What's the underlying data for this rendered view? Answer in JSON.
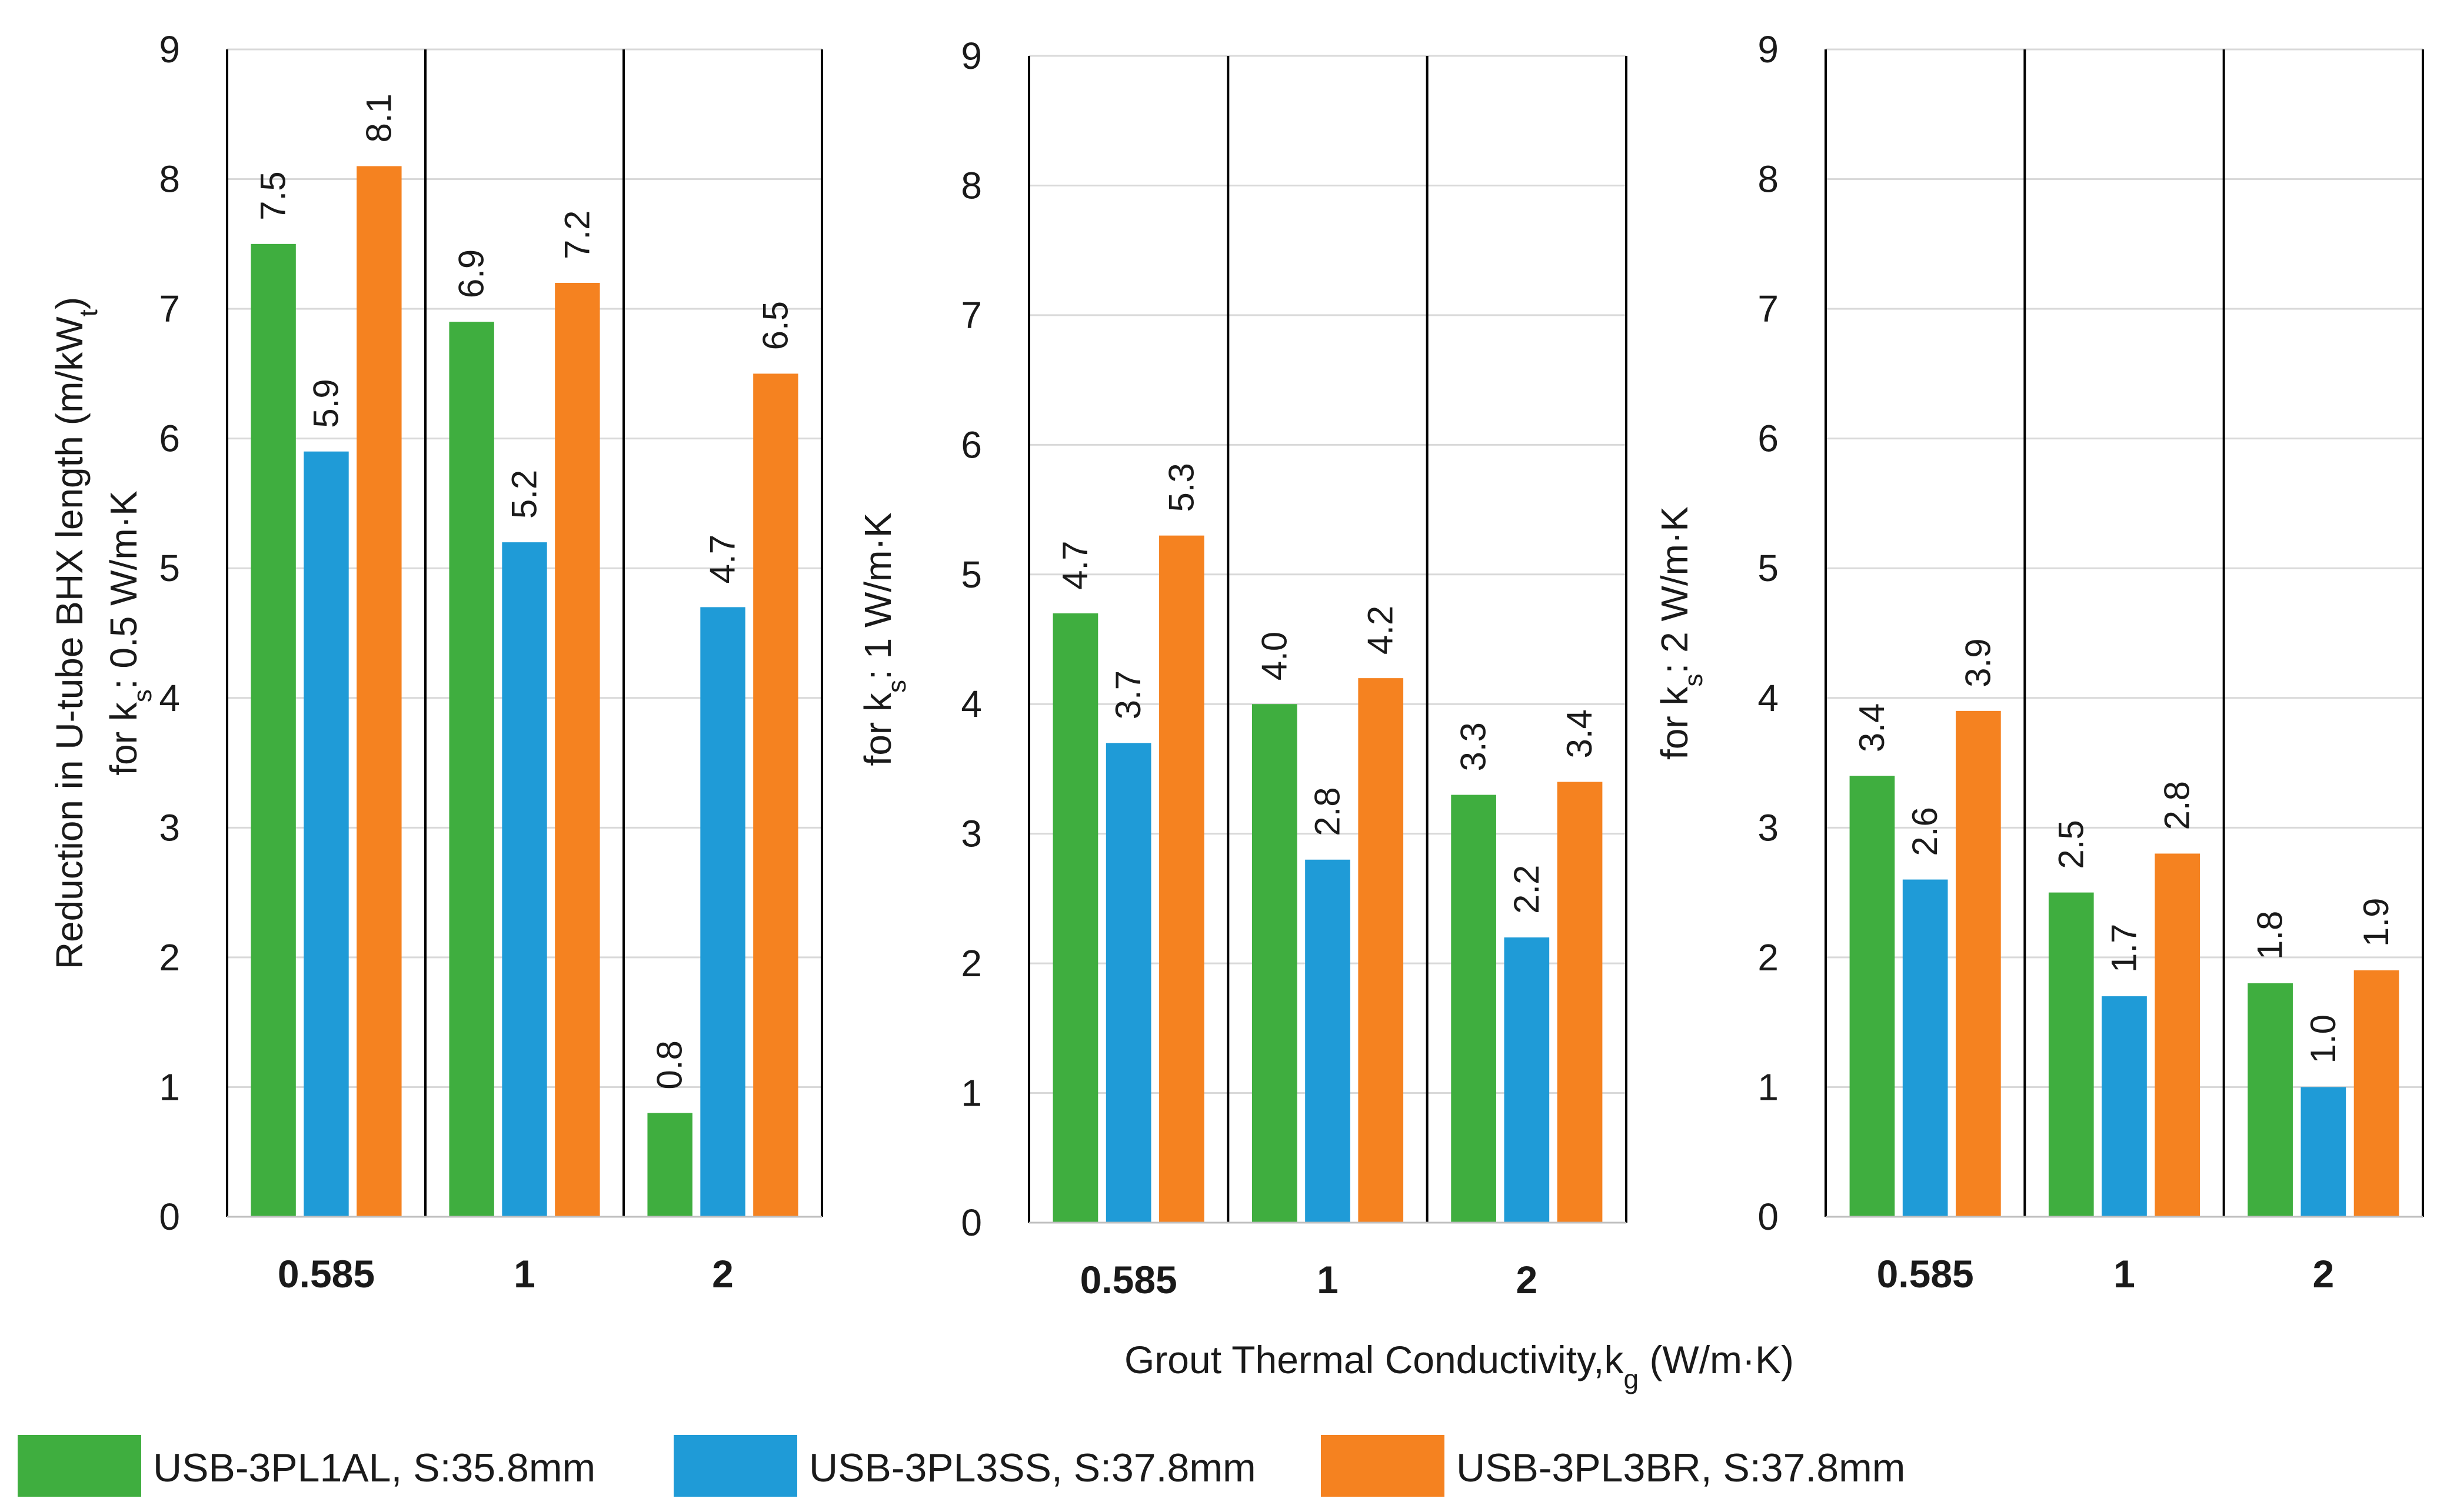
{
  "shared_x_axis_label": "Grout Thermal Conductivity,k",
  "shared_x_axis_subscript": "g",
  "shared_x_axis_unit": " (W/m·K)",
  "series_colors": [
    "#3fae3f",
    "#1f9bd7",
    "#f58220"
  ],
  "legend": [
    {
      "label": "USB-3PL1AL, S:35.8mm",
      "color": "#3fae3f"
    },
    {
      "label": "USB-3PL3SS, S:37.8mm",
      "color": "#1f9bd7"
    },
    {
      "label": "USB-3PL3BR, S:37.8mm",
      "color": "#f58220"
    }
  ],
  "chart_data": [
    {
      "type": "bar",
      "ylabel_top": "Reduction in U-tube BHX length (m/kW",
      "ylabel_top_subscript": "t",
      "ylabel_top_end": ")",
      "ylabel_bottom": "for k",
      "ylabel_bottom_subscript": "s",
      "ylabel_bottom_end": ": 0.5 W/m·K",
      "ylim": [
        0,
        9
      ],
      "yticks": [
        0,
        1,
        2,
        3,
        4,
        5,
        6,
        7,
        8,
        9
      ],
      "grid": true,
      "categories": [
        "0.585",
        "1",
        "2"
      ],
      "series": [
        {
          "name": "USB-3PL1AL, S:35.8mm",
          "values": [
            7.5,
            6.9,
            0.8
          ],
          "labels": [
            "7.5",
            "6.9",
            "0.8"
          ]
        },
        {
          "name": "USB-3PL3SS, S:37.8mm",
          "values": [
            5.9,
            5.2,
            4.7
          ],
          "labels": [
            "5.9",
            "5.2",
            "4.7"
          ]
        },
        {
          "name": "USB-3PL3BR, S:37.8mm",
          "values": [
            8.1,
            7.2,
            6.5
          ],
          "labels": [
            "8.1",
            "7.2",
            "6.5"
          ]
        }
      ]
    },
    {
      "type": "bar",
      "ylabel_bottom": "for k",
      "ylabel_bottom_subscript": "s",
      "ylabel_bottom_end": ": 1 W/m·K",
      "ylim": [
        0,
        9
      ],
      "yticks": [
        0,
        1,
        2,
        3,
        4,
        5,
        6,
        7,
        8,
        9
      ],
      "grid": true,
      "categories": [
        "0.585",
        "1",
        "2"
      ],
      "series": [
        {
          "name": "USB-3PL1AL, S:35.8mm",
          "values": [
            4.7,
            4.0,
            3.3
          ],
          "labels": [
            "4.7",
            "4.0",
            "3.3"
          ]
        },
        {
          "name": "USB-3PL3SS, S:37.8mm",
          "values": [
            3.7,
            2.8,
            2.2
          ],
          "labels": [
            "3.7",
            "2.8",
            "2.2"
          ]
        },
        {
          "name": "USB-3PL3BR, S:37.8mm",
          "values": [
            5.3,
            4.2,
            3.4
          ],
          "labels": [
            "5.3",
            "4.2",
            "3.4"
          ]
        }
      ]
    },
    {
      "type": "bar",
      "ylabel_bottom": "for k",
      "ylabel_bottom_subscript": "s",
      "ylabel_bottom_end": ": 2 W/m·K",
      "ylim": [
        0,
        9
      ],
      "yticks": [
        0,
        1,
        2,
        3,
        4,
        5,
        6,
        7,
        8,
        9
      ],
      "grid": true,
      "categories": [
        "0.585",
        "1",
        "2"
      ],
      "series": [
        {
          "name": "USB-3PL1AL, S:35.8mm",
          "values": [
            3.4,
            2.5,
            1.8
          ],
          "labels": [
            "3.4",
            "2.5",
            "1.8"
          ]
        },
        {
          "name": "USB-3PL3SS, S:37.8mm",
          "values": [
            2.6,
            1.7,
            1.0
          ],
          "labels": [
            "2.6",
            "1.7",
            "1.0"
          ]
        },
        {
          "name": "USB-3PL3BR, S:37.8mm",
          "values": [
            3.9,
            2.8,
            1.9
          ],
          "labels": [
            "3.9",
            "2.8",
            "1.9"
          ]
        }
      ]
    }
  ]
}
